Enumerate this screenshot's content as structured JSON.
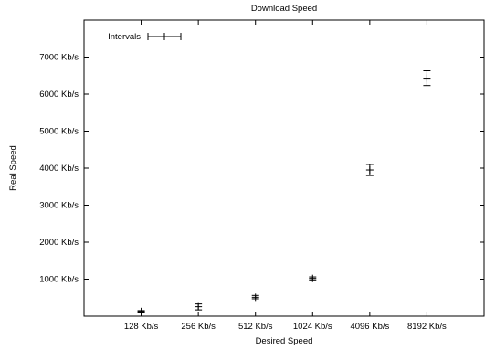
{
  "chart_data": {
    "type": "scatter",
    "title": "Download Speed",
    "xlabel": "Desired Speed",
    "ylabel": "Real Speed",
    "categories": [
      "128 Kb/s",
      "256 Kb/s",
      "512 Kb/s",
      "1024 Kb/s",
      "4096 Kb/s",
      "8192 Kb/s"
    ],
    "y_ticks": [
      {
        "value": 1000,
        "label": "1000 Kb/s"
      },
      {
        "value": 2000,
        "label": "2000 Kb/s"
      },
      {
        "value": 3000,
        "label": "3000 Kb/s"
      },
      {
        "value": 4000,
        "label": "4000 Kb/s"
      },
      {
        "value": 5000,
        "label": "5000 Kb/s"
      },
      {
        "value": 6000,
        "label": "6000 Kb/s"
      },
      {
        "value": 7000,
        "label": "7000 Kb/s"
      }
    ],
    "ylim": [
      0,
      8000
    ],
    "xlim": [
      0,
      7
    ],
    "grid": false,
    "legend": {
      "label": "Intervals",
      "placement": "top-left"
    },
    "series": [
      {
        "name": "Intervals",
        "points": [
          {
            "x": 1,
            "y": 128,
            "low": 110,
            "high": 150,
            "x_err": 0.1
          },
          {
            "x": 2,
            "y": 256,
            "low": 170,
            "high": 330,
            "x_err": 0.1
          },
          {
            "x": 3,
            "y": 510,
            "low": 470,
            "high": 560,
            "x_err": 0.1
          },
          {
            "x": 4,
            "y": 1020,
            "low": 980,
            "high": 1060,
            "x_err": 0.1
          },
          {
            "x": 5,
            "y": 3950,
            "low": 3800,
            "high": 4100,
            "x_err": 0.1
          },
          {
            "x": 6,
            "y": 6430,
            "low": 6230,
            "high": 6630,
            "x_err": 0.1
          }
        ]
      }
    ],
    "colors": {
      "axis": "#000000",
      "marks": "#000000",
      "background": "#ffffff"
    }
  }
}
